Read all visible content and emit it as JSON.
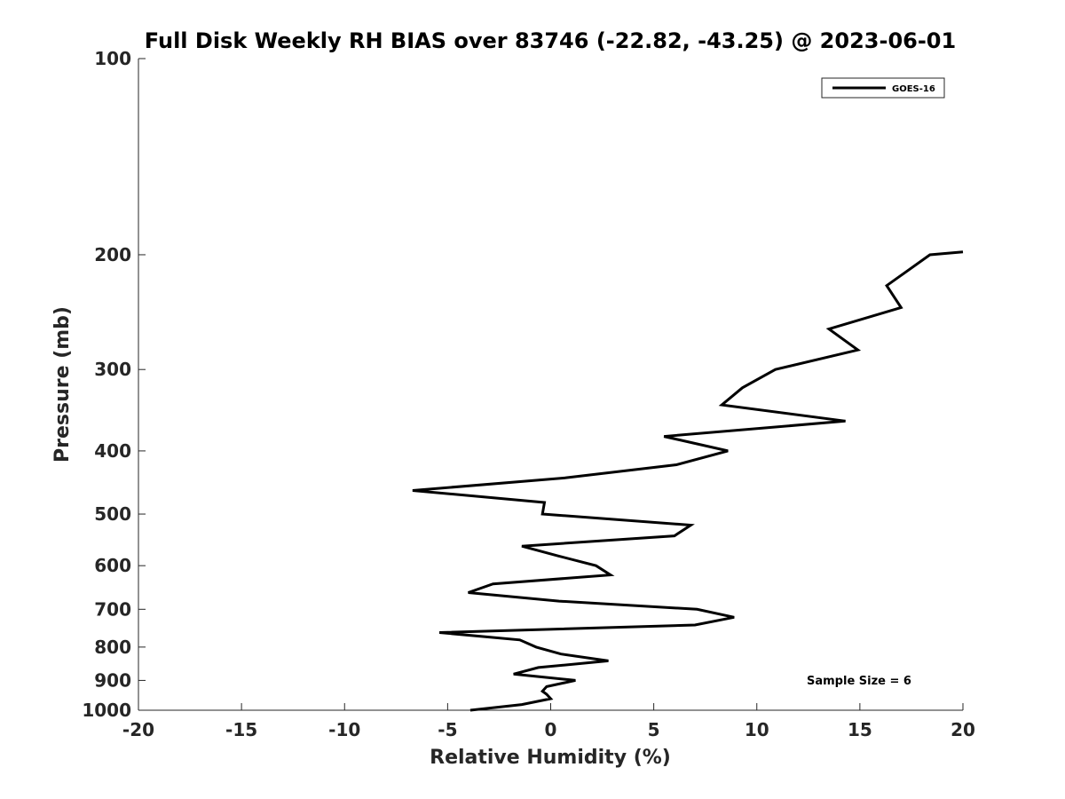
{
  "chart_data": {
    "type": "line",
    "title": "Full Disk Weekly RH BIAS over 83746 (-22.82, -43.25) @ 2023-06-01",
    "xlabel": "Relative Humidity (%)",
    "ylabel": "Pressure (mb)",
    "xlim": [
      -20,
      20
    ],
    "ylim": [
      100,
      1000
    ],
    "y_scale": "log",
    "y_inverted": true,
    "grid": false,
    "x_ticks": [
      -20,
      -15,
      -10,
      -5,
      0,
      5,
      10,
      15,
      20
    ],
    "x_tick_labels": [
      "-20",
      "-15",
      "-10",
      "-5",
      "0",
      "5",
      "10",
      "15",
      "20"
    ],
    "y_ticks": [
      100,
      200,
      300,
      400,
      500,
      600,
      700,
      800,
      900,
      1000
    ],
    "y_tick_labels": [
      "100",
      "200",
      "300",
      "400",
      "500",
      "600",
      "700",
      "800",
      "900",
      "1000"
    ],
    "legend_position": "top-right",
    "annotation": "Sample Size = 6",
    "series": [
      {
        "name": "GOES-16",
        "color": "#000000",
        "x": [
          20.0,
          18.4,
          16.3,
          17.0,
          13.5,
          14.9,
          10.9,
          9.3,
          8.3,
          14.3,
          5.5,
          8.6,
          6.1,
          0.7,
          -6.7,
          -0.3,
          -0.4,
          6.8,
          6.0,
          -1.4,
          0.4,
          2.2,
          2.9,
          -2.8,
          -4.0,
          0.4,
          7.1,
          8.9,
          7.0,
          -5.4,
          -1.5,
          -0.7,
          0.5,
          2.8,
          -0.6,
          -1.8,
          1.2,
          -0.2,
          -0.4,
          -0.2,
          0.0,
          -1.4,
          -3.9
        ],
        "y": [
          198,
          200,
          223,
          241,
          260,
          280,
          300,
          320,
          340,
          360,
          380,
          400,
          420,
          440,
          460,
          480,
          500,
          520,
          540,
          560,
          580,
          600,
          620,
          640,
          660,
          680,
          700,
          720,
          740,
          760,
          780,
          800,
          820,
          840,
          860,
          880,
          900,
          920,
          935,
          945,
          960,
          980,
          1000
        ]
      }
    ]
  }
}
